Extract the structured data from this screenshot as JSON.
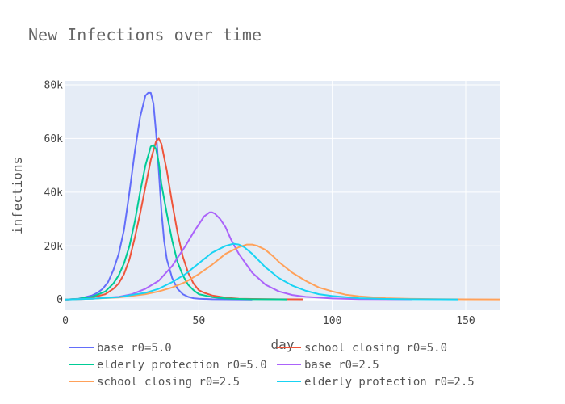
{
  "chart_data": {
    "type": "line",
    "title": "New Infections over time",
    "xlabel": "day",
    "ylabel": "infections",
    "xlim": [
      0,
      163
    ],
    "ylim": [
      -4000,
      81500
    ],
    "xticks": [
      0,
      50,
      100,
      150
    ],
    "yticks": [
      0,
      20000,
      40000,
      60000,
      80000
    ],
    "xtick_labels": [
      "0",
      "50",
      "100",
      "150"
    ],
    "ytick_labels": [
      "0",
      "20k",
      "40k",
      "60k",
      "80k"
    ],
    "grid": true,
    "legend_position": "bottom",
    "series": [
      {
        "name": "base r0=5.0",
        "color": "#636efa",
        "x": [
          0,
          5,
          10,
          12,
          14,
          16,
          18,
          20,
          22,
          24,
          26,
          28,
          30,
          31,
          32,
          33,
          34,
          35,
          36,
          37,
          38,
          40,
          42,
          44,
          46,
          48,
          50,
          55,
          60,
          65,
          70
        ],
        "y": [
          0,
          300,
          1500,
          2500,
          4000,
          6500,
          11000,
          17000,
          26000,
          40000,
          55000,
          68000,
          76000,
          77000,
          77000,
          73000,
          62000,
          48000,
          33000,
          22000,
          15000,
          8000,
          4000,
          2000,
          1000,
          500,
          300,
          100,
          50,
          20,
          0
        ]
      },
      {
        "name": "school closing r0=5.0",
        "color": "#ef553b",
        "x": [
          0,
          5,
          10,
          15,
          18,
          20,
          22,
          24,
          26,
          28,
          30,
          32,
          34,
          35,
          36,
          38,
          40,
          42,
          44,
          46,
          48,
          50,
          52,
          55,
          60,
          65,
          70,
          80,
          89
        ],
        "y": [
          0,
          200,
          800,
          2000,
          4000,
          6000,
          9500,
          15000,
          23000,
          32000,
          42000,
          52000,
          59000,
          60000,
          58000,
          48000,
          36000,
          25000,
          16000,
          10000,
          6000,
          3500,
          2500,
          1500,
          700,
          300,
          200,
          100,
          50
        ]
      },
      {
        "name": "elderly protection r0=5.0",
        "color": "#00cc96",
        "x": [
          0,
          5,
          10,
          15,
          18,
          20,
          22,
          24,
          26,
          28,
          30,
          32,
          33,
          34,
          35,
          36,
          38,
          40,
          42,
          44,
          46,
          48,
          50,
          55,
          60,
          65,
          70,
          80,
          83
        ],
        "y": [
          0,
          250,
          1000,
          3000,
          6000,
          9000,
          13500,
          20000,
          29000,
          40000,
          50000,
          57000,
          57500,
          56000,
          51000,
          43000,
          32000,
          22000,
          14000,
          9000,
          5500,
          3500,
          2000,
          900,
          400,
          200,
          100,
          50,
          30
        ]
      },
      {
        "name": "base r0=2.5",
        "color": "#ab63fa",
        "x": [
          0,
          10,
          20,
          25,
          30,
          35,
          40,
          45,
          48,
          50,
          52,
          54,
          55,
          56,
          58,
          60,
          62,
          65,
          70,
          75,
          80,
          85,
          90,
          100,
          110,
          120,
          130
        ],
        "y": [
          0,
          300,
          1000,
          2000,
          4000,
          7000,
          12500,
          20000,
          25000,
          28000,
          31000,
          32500,
          32500,
          32000,
          30000,
          27000,
          22500,
          17000,
          10000,
          5500,
          3000,
          1700,
          1000,
          400,
          150,
          80,
          50
        ]
      },
      {
        "name": "school closing r0=2.5",
        "color": "#ffa15a",
        "x": [
          0,
          10,
          20,
          30,
          35,
          40,
          45,
          50,
          55,
          60,
          65,
          68,
          70,
          72,
          75,
          78,
          80,
          85,
          90,
          95,
          100,
          105,
          110,
          120,
          130,
          140,
          150,
          163
        ],
        "y": [
          0,
          300,
          800,
          2000,
          3000,
          4500,
          6500,
          9500,
          13000,
          17000,
          19500,
          20500,
          20500,
          20000,
          18500,
          16000,
          14000,
          10000,
          7000,
          4500,
          3000,
          1800,
          1200,
          500,
          250,
          120,
          60,
          30
        ]
      },
      {
        "name": "elderly protection r0=2.5",
        "color": "#19d3f3",
        "x": [
          0,
          10,
          20,
          30,
          35,
          40,
          45,
          50,
          55,
          60,
          63,
          65,
          67,
          70,
          75,
          80,
          85,
          90,
          95,
          100,
          110,
          120,
          130,
          140,
          147
        ],
        "y": [
          0,
          300,
          900,
          2500,
          4000,
          6500,
          9500,
          13500,
          17500,
          20000,
          20800,
          20500,
          19500,
          17000,
          12000,
          8000,
          5200,
          3300,
          2000,
          1300,
          500,
          200,
          100,
          50,
          30
        ]
      }
    ]
  }
}
